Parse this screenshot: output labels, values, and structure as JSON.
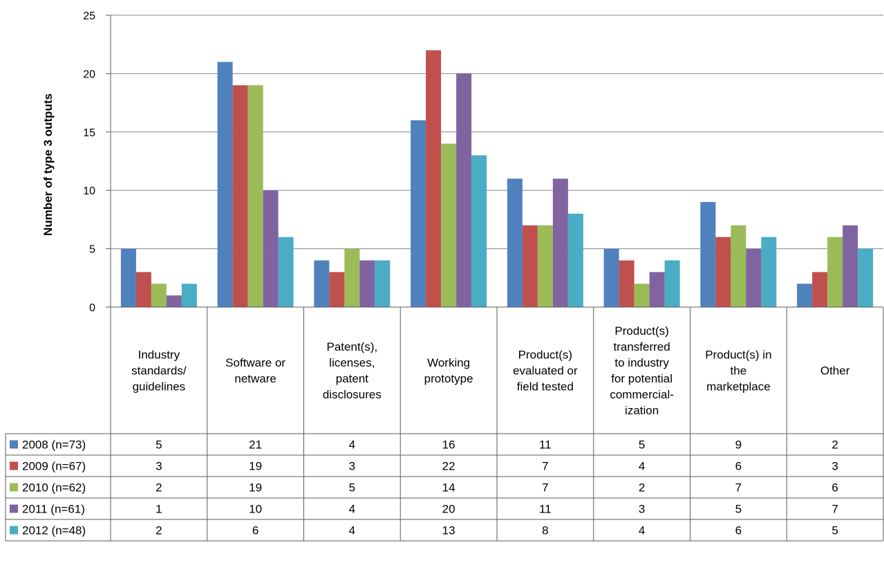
{
  "chart_data": {
    "type": "bar",
    "ylabel": "Number of type 3 outputs",
    "ylim": [
      0,
      25
    ],
    "yticks": [
      0,
      5,
      10,
      15,
      20,
      25
    ],
    "grid": true,
    "legend": "data-table-left",
    "categories": [
      [
        "Industry",
        "standards/",
        "guidelines"
      ],
      [
        "Software or",
        "netware"
      ],
      [
        "Patent(s),",
        "licenses,",
        "patent",
        "disclosures"
      ],
      [
        "Working",
        "prototype"
      ],
      [
        "Product(s)",
        "evaluated or",
        "field tested"
      ],
      [
        "Product(s)",
        "transferred",
        "to industry",
        "for potential",
        "commercial-",
        "ization"
      ],
      [
        "Product(s) in",
        "the",
        "marketplace"
      ],
      [
        "Other"
      ]
    ],
    "series": [
      {
        "name": "2008 (n=73)",
        "color": "#4f81bd",
        "values": [
          5,
          21,
          4,
          16,
          11,
          5,
          9,
          2
        ]
      },
      {
        "name": "2009 (n=67)",
        "color": "#c0504d",
        "values": [
          3,
          19,
          3,
          22,
          7,
          4,
          6,
          3
        ]
      },
      {
        "name": "2010 (n=62)",
        "color": "#9bbb59",
        "values": [
          2,
          19,
          5,
          14,
          7,
          2,
          7,
          6
        ]
      },
      {
        "name": "2011 (n=61)",
        "color": "#8064a2",
        "values": [
          1,
          10,
          4,
          20,
          11,
          3,
          5,
          7
        ]
      },
      {
        "name": "2012 (n=48)",
        "color": "#4bacc6",
        "values": [
          2,
          6,
          4,
          13,
          8,
          4,
          6,
          5
        ]
      }
    ]
  }
}
